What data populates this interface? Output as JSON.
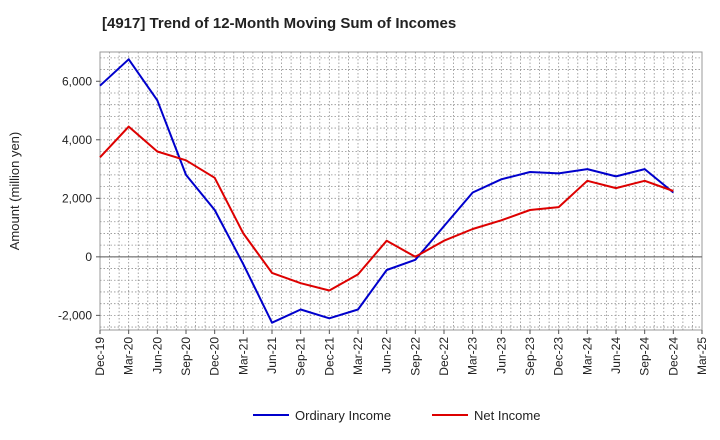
{
  "chart_data": {
    "type": "line",
    "title": "[4917]  Trend of 12-Month Moving Sum of Incomes",
    "xlabel": "",
    "ylabel": "Amount (million yen)",
    "ylim": [
      -2500,
      7000
    ],
    "yticks": [
      -2000,
      0,
      2000,
      4000,
      6000
    ],
    "ytick_labels": [
      "-2,000",
      "0",
      "2,000",
      "4,000",
      "6,000"
    ],
    "categories": [
      "Dec-19",
      "Mar-20",
      "Jun-20",
      "Sep-20",
      "Dec-20",
      "Mar-21",
      "Jun-21",
      "Sep-21",
      "Dec-21",
      "Mar-22",
      "Jun-22",
      "Sep-22",
      "Dec-22",
      "Mar-23",
      "Jun-23",
      "Sep-23",
      "Dec-23",
      "Mar-24",
      "Jun-24",
      "Sep-24",
      "Dec-24",
      "Mar-25"
    ],
    "grid": true,
    "legend_position": "bottom",
    "series": [
      {
        "name": "Ordinary Income",
        "color": "#0000cc",
        "values": [
          5850,
          6750,
          5350,
          2800,
          1600,
          -250,
          -2250,
          -1800,
          -2100,
          -1800,
          -450,
          -100,
          1050,
          2200,
          2650,
          2900,
          2850,
          3000,
          2750,
          3000,
          2200,
          null
        ]
      },
      {
        "name": "Net Income",
        "color": "#dd0000",
        "values": [
          3400,
          4450,
          3600,
          3300,
          2700,
          800,
          -550,
          -900,
          -1150,
          -600,
          550,
          0,
          550,
          950,
          1250,
          1600,
          1700,
          2600,
          2350,
          2600,
          2250,
          null
        ]
      }
    ]
  }
}
